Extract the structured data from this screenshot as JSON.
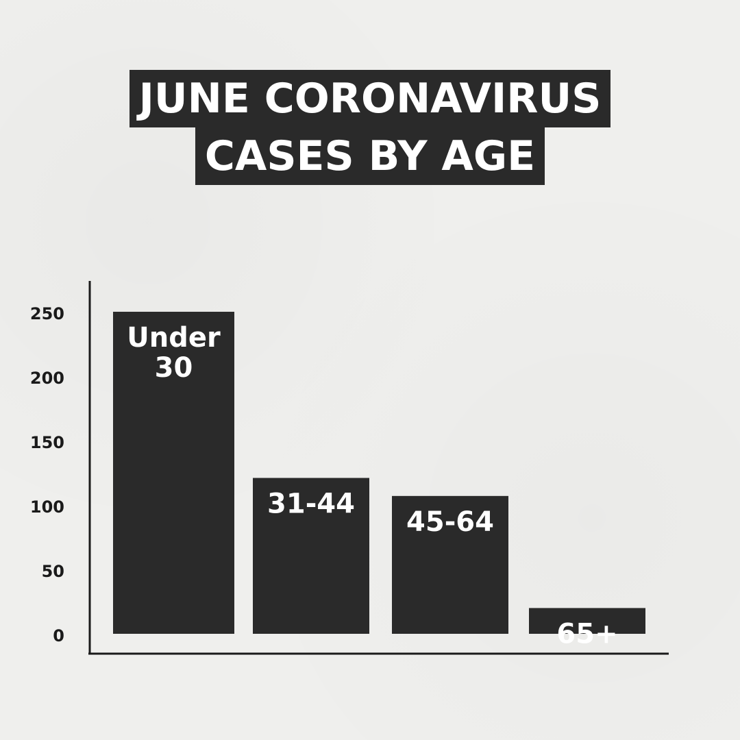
{
  "title_lines": [
    "JUNE CORONAVIRUS",
    "CASES BY AGE"
  ],
  "colors": {
    "background": "#efefed",
    "bar": "#2a2a2a",
    "bar_label": "#ffffff",
    "axis": "#1a1a1a",
    "tick_label": "#1a1a1a"
  },
  "chart_data": {
    "type": "bar",
    "title": "JUNE CORONAVIRUS CASES BY AGE",
    "xlabel": "",
    "ylabel": "",
    "categories": [
      "Under 30",
      "31-44",
      "45-64",
      "65+"
    ],
    "category_label_lines": [
      [
        "Under",
        "30"
      ],
      [
        "31-44"
      ],
      [
        "45-64"
      ],
      [
        "65+"
      ]
    ],
    "values": [
      250,
      121,
      107,
      20
    ],
    "ylim": [
      0,
      250
    ],
    "yticks": [
      0,
      50,
      100,
      150,
      200,
      250
    ],
    "grid": false,
    "legend": "none"
  }
}
